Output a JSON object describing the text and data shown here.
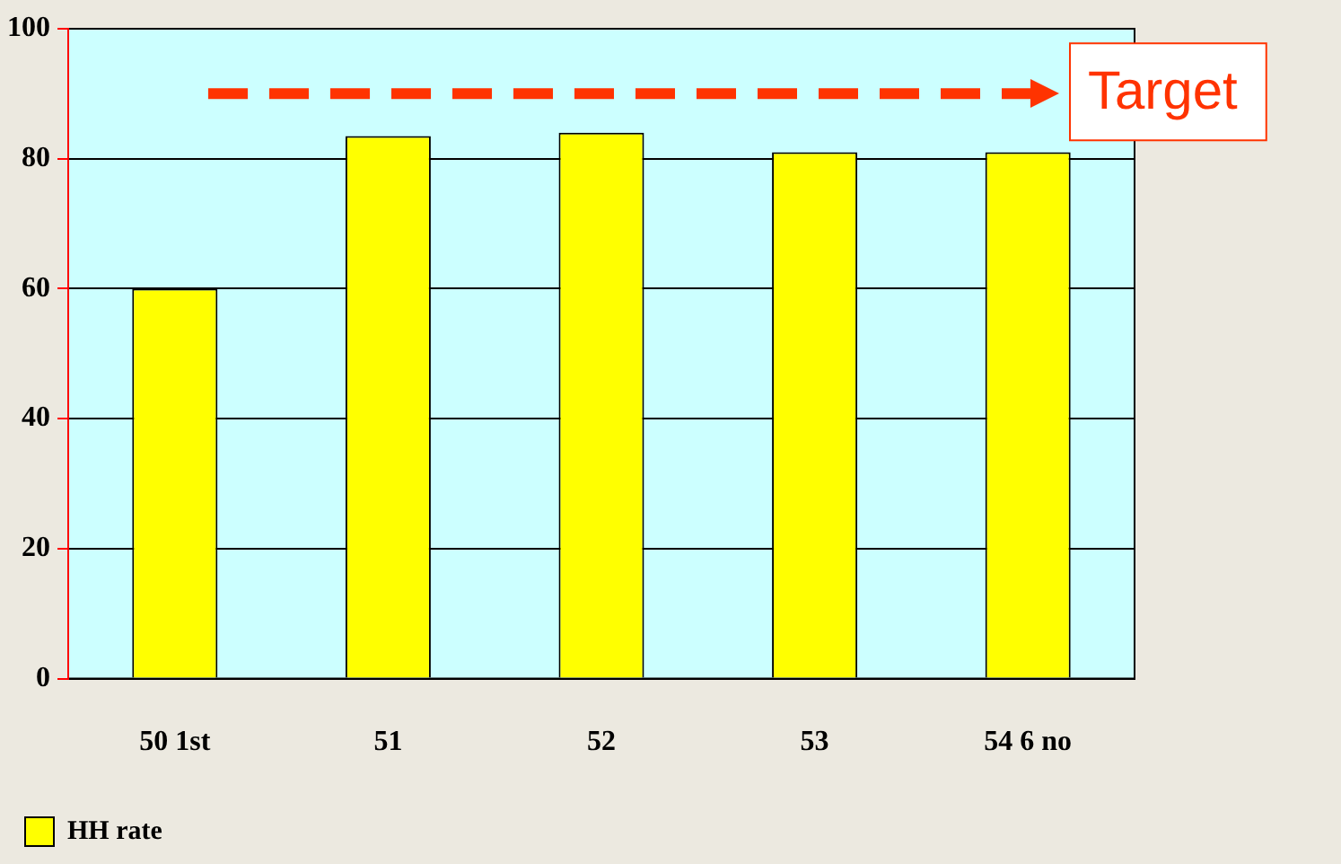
{
  "chart_data": {
    "type": "bar",
    "categories": [
      "50 1st",
      "51",
      "52",
      "53",
      "54 6 no"
    ],
    "series": [
      {
        "name": "HH rate",
        "color": "#ffff00",
        "values": [
          60,
          83.5,
          84,
          81,
          81
        ]
      }
    ],
    "ylim": [
      0,
      100
    ],
    "yticks": [
      0,
      20,
      40,
      60,
      80,
      100
    ],
    "grid": "y",
    "legend": "bottom left",
    "ref_lines": [
      {
        "axis": "y",
        "value": 90,
        "label": "Target",
        "color": "#ff3300",
        "line_style": "dashed"
      }
    ]
  }
}
